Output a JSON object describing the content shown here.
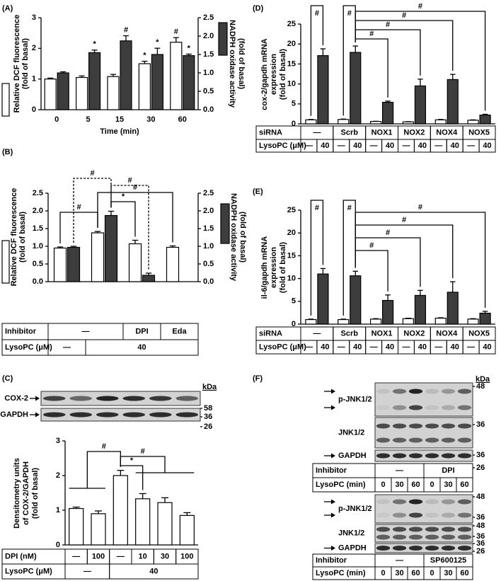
{
  "chart_data": [
    {
      "type": "bar",
      "panel_label": "(A)",
      "y_label": [
        "Relative DCF fluorescence",
        "(fold of basal)"
      ],
      "y2_label": [
        "NADPH oxidase activity",
        "(fold of basal)"
      ],
      "x_label": "Time (min)",
      "categories": [
        "0",
        "5",
        "15",
        "30",
        "60"
      ],
      "series": [
        {
          "color": "#ffffff",
          "values": [
            1.0,
            1.05,
            1.08,
            1.5,
            2.2
          ],
          "errors": [
            0.03,
            0.05,
            0.07,
            0.08,
            0.15
          ],
          "sig": [
            null,
            null,
            null,
            "*",
            "#"
          ]
        },
        {
          "color": "#3d3d3d",
          "axis": "y2",
          "values": [
            1.0,
            1.55,
            1.87,
            1.5,
            1.47
          ],
          "errors": [
            0.03,
            0.07,
            0.14,
            0.17,
            0.04
          ],
          "sig": [
            null,
            "*",
            "#",
            "*",
            "*"
          ]
        }
      ],
      "ylim": [
        0,
        3
      ],
      "yticks": [
        0,
        1,
        2,
        3
      ],
      "y2lim": [
        0,
        2.5
      ],
      "y2ticks": [
        {
          "value": 0,
          "label": "0.0"
        },
        {
          "value": 0.5,
          "label": "0.5"
        },
        {
          "value": 1,
          "label": "1.0"
        },
        {
          "value": 1.5,
          "label": "1.5"
        },
        {
          "value": 2,
          "label": "2.0"
        },
        2.5
      ]
    },
    {
      "type": "bar",
      "panel_label": "(B)",
      "y_label": [
        "Relative DCF fluorescence",
        "(fold of basal)"
      ],
      "y2_label": [
        "NADPH oxidase activity",
        "(fold of basal)"
      ],
      "series": [
        {
          "color": "#ffffff",
          "values": [
            0.95,
            1.38,
            1.07,
            0.97
          ],
          "errors": [
            0.03,
            0.04,
            0.1,
            0.04
          ]
        },
        {
          "color": "#3d3d3d",
          "axis": "y2",
          "values": [
            0.97,
            1.87,
            0.18,
            null
          ],
          "errors": [
            0.03,
            0.12,
            0.06,
            null
          ]
        }
      ],
      "ylim": [
        0,
        2.5
      ],
      "yticks": [
        {
          "value": 0,
          "label": "0.0"
        },
        {
          "value": 0.5,
          "label": "0.5"
        },
        {
          "value": 1,
          "label": "1.0"
        },
        {
          "value": 1.5,
          "label": "1.5"
        },
        {
          "value": 2,
          "label": "2.0"
        },
        2.5
      ],
      "y2lim": [
        0,
        2.5
      ],
      "y2ticks": [
        {
          "value": 0,
          "label": "0.0"
        },
        {
          "value": 0.5,
          "label": "0.5"
        },
        {
          "value": 1,
          "label": "1.0"
        },
        {
          "value": 1.5,
          "label": "1.5"
        },
        {
          "value": 2,
          "label": "2.0"
        },
        2.5
      ],
      "brackets": [
        "#",
        "#",
        "#",
        "#",
        "*"
      ],
      "table": {
        "rows": [
          {
            "label": "Inhibitor",
            "cells": [
              "—",
              "DPI",
              "Eda"
            ]
          },
          {
            "label": "LysoPC (μM)",
            "cells": [
              "—",
              40
            ]
          }
        ]
      }
    },
    {
      "type": "bar",
      "panel_label": "(C)",
      "blot": {
        "rows": [
          "COX-2",
          "GAPDH"
        ],
        "kda_label": "kDa",
        "markers": [
          58,
          36,
          26
        ]
      },
      "y_label": [
        "Densitometry units",
        "of COX-2/GAPDH",
        "(fold of basal)"
      ],
      "series": [
        {
          "color": "#ffffff",
          "values": [
            1.05,
            0.9,
            2.0,
            1.33,
            1.22,
            0.85
          ],
          "errors": [
            0.04,
            0.08,
            0.15,
            0.15,
            0.14,
            0.08
          ]
        }
      ],
      "ylim": [
        0,
        3
      ],
      "yticks": [
        0,
        1,
        2,
        3
      ],
      "brackets": [
        "#",
        "*",
        "#"
      ],
      "table": {
        "rows": [
          {
            "label": "DPI (nM)",
            "cells": [
              "—",
              100,
              "—",
              10,
              30,
              100
            ]
          },
          {
            "label": "LysoPC (μM)",
            "cells": [
              "—",
              40
            ]
          }
        ]
      }
    },
    {
      "type": "bar",
      "panel_label": "(D)",
      "y_label": [
        "cox-2/gapdh mRNA",
        "expression",
        "(fold of basal)"
      ],
      "series": [
        {
          "color": "#ffffff",
          "values": [
            1.0,
            1.1,
            0.6,
            0.5,
            1.0,
            0.9
          ],
          "errors": [
            0.1,
            0.1,
            0.05,
            0.05,
            0.1,
            0.1
          ]
        },
        {
          "color": "#3d3d3d",
          "values": [
            17.1,
            17.9,
            5.4,
            9.5,
            11.1,
            2.2
          ],
          "errors": [
            1.7,
            1.6,
            0.3,
            1.7,
            1.3,
            0.2
          ]
        }
      ],
      "ylim": [
        0,
        25
      ],
      "yticks": [
        0,
        5,
        10,
        15,
        20,
        25
      ],
      "brackets": [
        "#",
        "#",
        "#",
        "#",
        "#",
        "#"
      ],
      "table": {
        "rows": [
          {
            "label": "siRNA",
            "cells": [
              "—",
              "Scrb",
              "NOX1",
              "NOX2",
              "NOX4",
              "NOX5"
            ]
          },
          {
            "label": "LysoPC (μM)",
            "cells": [
              "—",
              40,
              "—",
              40,
              "—",
              40,
              "—",
              40,
              "—",
              40,
              "—",
              40
            ]
          }
        ]
      }
    },
    {
      "type": "bar",
      "panel_label": "(E)",
      "y_label": [
        "il-6/gapdh mRNA",
        "expression",
        "(fold of basal)"
      ],
      "series": [
        {
          "color": "#ffffff",
          "values": [
            1.0,
            1.0,
            1.1,
            1.2,
            1.3,
            1.1
          ],
          "errors": [
            0.1,
            0.1,
            0.1,
            0.1,
            0.1,
            0.1
          ]
        },
        {
          "color": "#3d3d3d",
          "values": [
            11.0,
            10.6,
            5.2,
            6.3,
            7.0,
            2.4
          ],
          "errors": [
            1.2,
            1.0,
            1.2,
            1.1,
            2.3,
            0.4
          ]
        }
      ],
      "ylim": [
        0,
        25
      ],
      "yticks": [
        0,
        5,
        10,
        15,
        20,
        25
      ],
      "brackets": [
        "#",
        "#",
        "#",
        "#",
        "#",
        "#"
      ],
      "table": {
        "rows": [
          {
            "label": "siRNA",
            "cells": [
              "—",
              "Scrb",
              "NOX1",
              "NOX2",
              "NOX4",
              "NOX5"
            ]
          },
          {
            "label": "LysoPC (μM)",
            "cells": [
              "—",
              40,
              "—",
              40,
              "—",
              40,
              "—",
              40,
              "—",
              40,
              "—",
              40
            ]
          }
        ]
      }
    },
    {
      "type": "blot",
      "panel_label": "(F)",
      "kda_label": "kDa",
      "blocks": [
        {
          "rows": [
            "p-JNK1/2",
            "JNK1/2",
            "GAPDH"
          ],
          "markers": [
            48,
            36,
            36,
            26
          ],
          "table": {
            "rows": [
              {
                "label": "Inhibitor",
                "cells": [
                  "—",
                  "DPI"
                ]
              },
              {
                "label": "LysoPC (min)",
                "cells": [
                  0,
                  30,
                  60,
                  0,
                  30,
                  60
                ]
              }
            ]
          }
        },
        {
          "rows": [
            "p-JNK1/2",
            "JNK1/2",
            "GAPDH"
          ],
          "markers": [
            48,
            36,
            48,
            36,
            36,
            26
          ],
          "table": {
            "rows": [
              {
                "label": "Inhibitor",
                "cells": [
                  "—",
                  "SP600125"
                ]
              },
              {
                "label": "LysoPC (min)",
                "cells": [
                  0,
                  30,
                  60,
                  0,
                  30,
                  60
                ]
              }
            ]
          }
        }
      ]
    }
  ]
}
